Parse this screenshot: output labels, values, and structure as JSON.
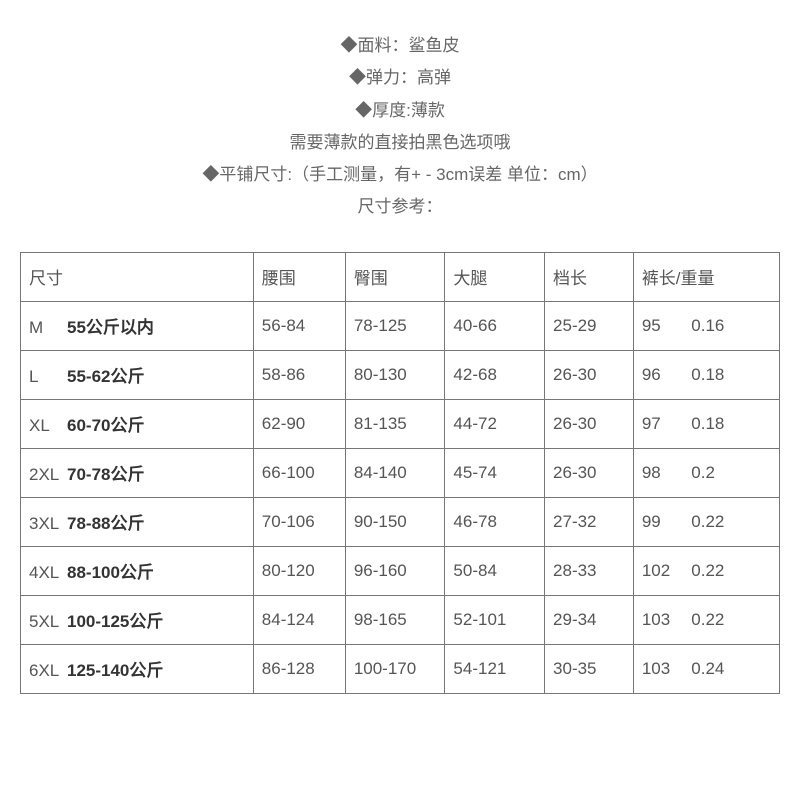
{
  "header": {
    "lines": [
      "◆面料：鲨鱼皮",
      "◆弹力：高弹",
      "◆厚度:薄款",
      "需要薄款的直接拍黑色选项哦",
      "◆平铺尺寸:（手工测量，有+ - 3cm误差 单位：cm）",
      "尺寸参考："
    ]
  },
  "table": {
    "columns": [
      "尺寸",
      "腰围",
      "臀围",
      "大腿",
      "档长",
      "裤长/重量"
    ],
    "rows": [
      {
        "size": "M",
        "weight_label": "55公斤以内",
        "waist": "56-84",
        "hip": "78-125",
        "thigh": "40-66",
        "crotch": "25-29",
        "length": "95",
        "weight": "0.16"
      },
      {
        "size": "L",
        "weight_label": "55-62公斤",
        "waist": "58-86",
        "hip": "80-130",
        "thigh": "42-68",
        "crotch": "26-30",
        "length": "96",
        "weight": "0.18"
      },
      {
        "size": "XL",
        "weight_label": "60-70公斤",
        "waist": "62-90",
        "hip": "81-135",
        "thigh": "44-72",
        "crotch": "26-30",
        "length": "97",
        "weight": "0.18"
      },
      {
        "size": "2XL",
        "weight_label": "70-78公斤",
        "waist": "66-100",
        "hip": "84-140",
        "thigh": "45-74",
        "crotch": "26-30",
        "length": "98",
        "weight": "0.2"
      },
      {
        "size": "3XL",
        "weight_label": "78-88公斤",
        "waist": "70-106",
        "hip": "90-150",
        "thigh": "46-78",
        "crotch": "27-32",
        "length": "99",
        "weight": "0.22"
      },
      {
        "size": "4XL",
        "weight_label": "88-100公斤",
        "waist": "80-120",
        "hip": "96-160",
        "thigh": "50-84",
        "crotch": "28-33",
        "length": "102",
        "weight": "0.22"
      },
      {
        "size": "5XL",
        "weight_label": "100-125公斤",
        "waist": "84-124",
        "hip": "98-165",
        "thigh": "52-101",
        "crotch": "29-34",
        "length": "103",
        "weight": "0.22"
      },
      {
        "size": "6XL",
        "weight_label": "125-140公斤",
        "waist": "86-128",
        "hip": "100-170",
        "thigh": "54-121",
        "crotch": "30-35",
        "length": "103",
        "weight": "0.24"
      }
    ]
  },
  "style": {
    "page_bg": "#ffffff",
    "text_color": "#555555",
    "bold_color": "#333333",
    "border_color": "#777777",
    "header_fontsize": 17,
    "cell_fontsize": 17
  }
}
